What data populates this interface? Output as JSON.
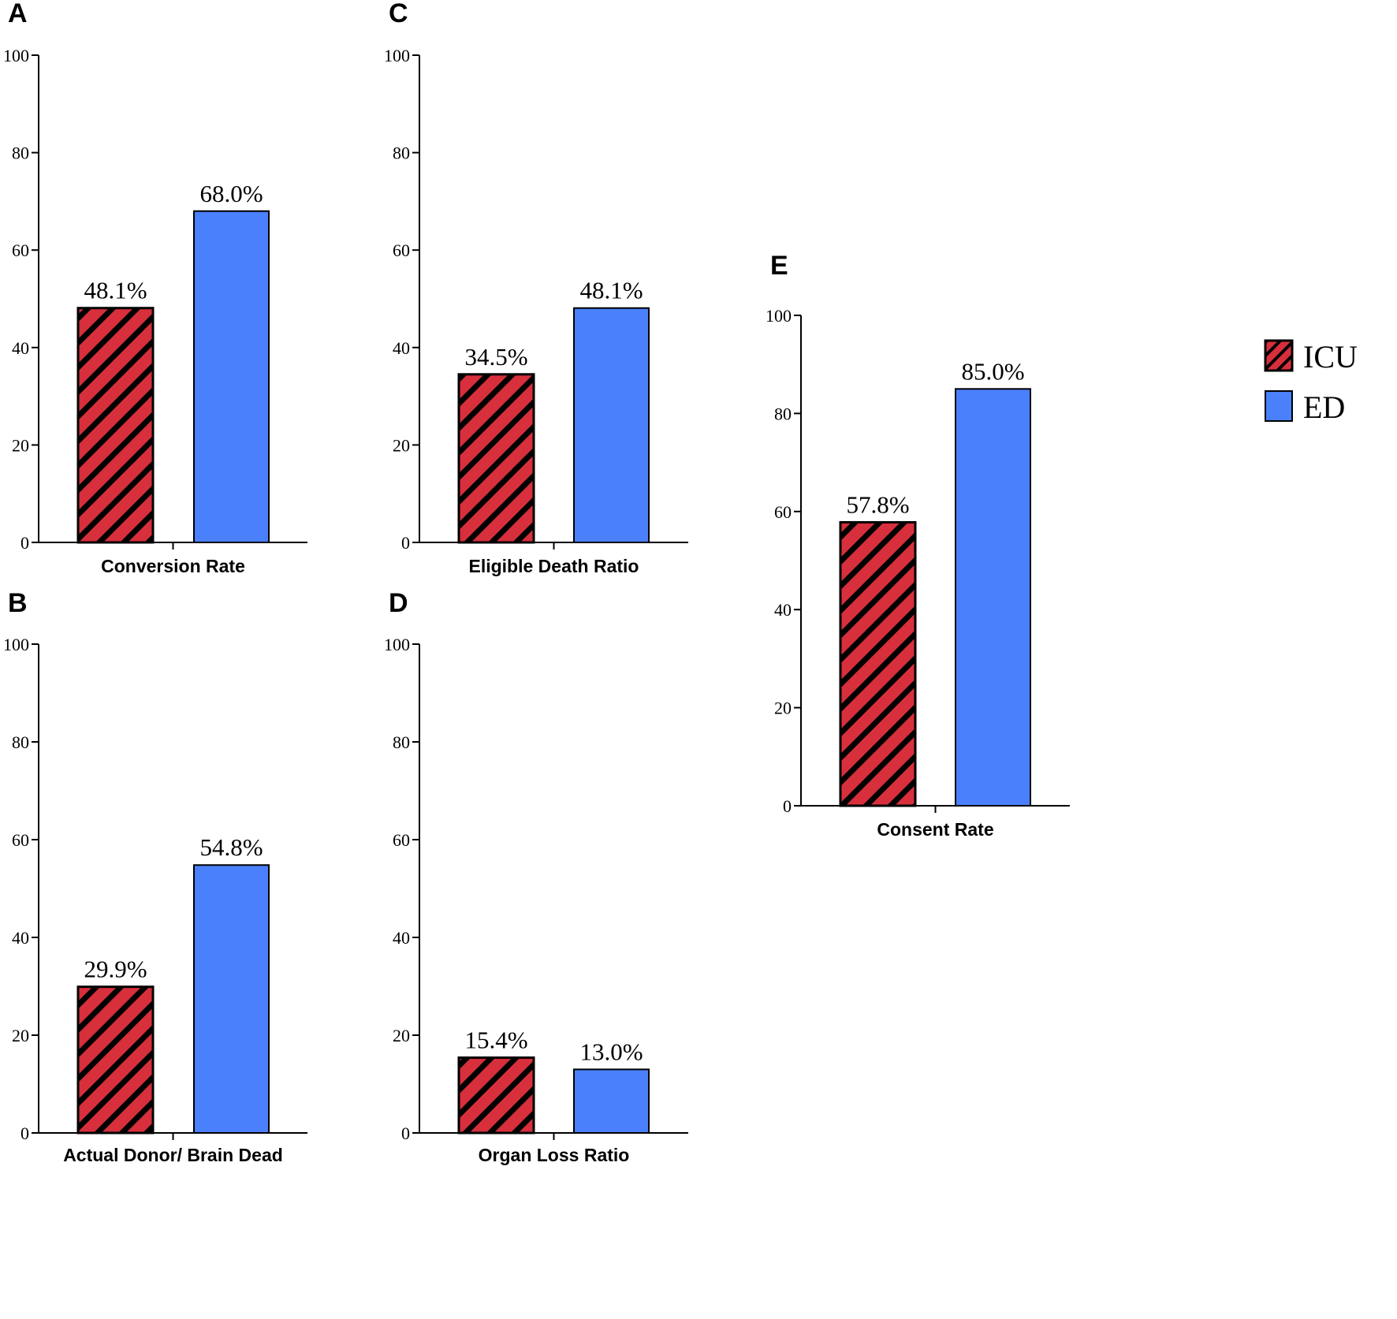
{
  "colors": {
    "icu": "#d72f3c",
    "ed": "#4a80fb",
    "axis": "#000000"
  },
  "legend": [
    {
      "name": "ICU",
      "pattern": "hatch"
    },
    {
      "name": "ED",
      "pattern": "solid"
    }
  ],
  "chart_data": [
    {
      "panel": "A",
      "type": "bar",
      "xlabel": "Conversion Rate",
      "ylim": [
        0,
        100
      ],
      "yticks": [
        0,
        20,
        40,
        60,
        80,
        100
      ],
      "series": [
        {
          "name": "ICU",
          "value": 48.1,
          "label": "48.1%"
        },
        {
          "name": "ED",
          "value": 68.0,
          "label": "68.0%"
        }
      ]
    },
    {
      "panel": "B",
      "type": "bar",
      "xlabel": "Actual Donor/ Brain Dead",
      "ylim": [
        0,
        100
      ],
      "yticks": [
        0,
        20,
        40,
        60,
        80,
        100
      ],
      "series": [
        {
          "name": "ICU",
          "value": 29.9,
          "label": "29.9%"
        },
        {
          "name": "ED",
          "value": 54.8,
          "label": "54.8%"
        }
      ]
    },
    {
      "panel": "C",
      "type": "bar",
      "xlabel": "Eligible Death Ratio",
      "ylim": [
        0,
        100
      ],
      "yticks": [
        0,
        20,
        40,
        60,
        80,
        100
      ],
      "series": [
        {
          "name": "ICU",
          "value": 34.5,
          "label": "34.5%"
        },
        {
          "name": "ED",
          "value": 48.1,
          "label": "48.1%"
        }
      ]
    },
    {
      "panel": "D",
      "type": "bar",
      "xlabel": "Organ Loss Ratio",
      "ylim": [
        0,
        100
      ],
      "yticks": [
        0,
        20,
        40,
        60,
        80,
        100
      ],
      "series": [
        {
          "name": "ICU",
          "value": 15.4,
          "label": "15.4%"
        },
        {
          "name": "ED",
          "value": 13.0,
          "label": "13.0%"
        }
      ]
    },
    {
      "panel": "E",
      "type": "bar",
      "xlabel": "Consent Rate",
      "ylim": [
        0,
        100
      ],
      "yticks": [
        0,
        20,
        40,
        60,
        80,
        100
      ],
      "series": [
        {
          "name": "ICU",
          "value": 57.8,
          "label": "57.8%"
        },
        {
          "name": "ED",
          "value": 85.0,
          "label": "85.0%"
        }
      ]
    }
  ]
}
